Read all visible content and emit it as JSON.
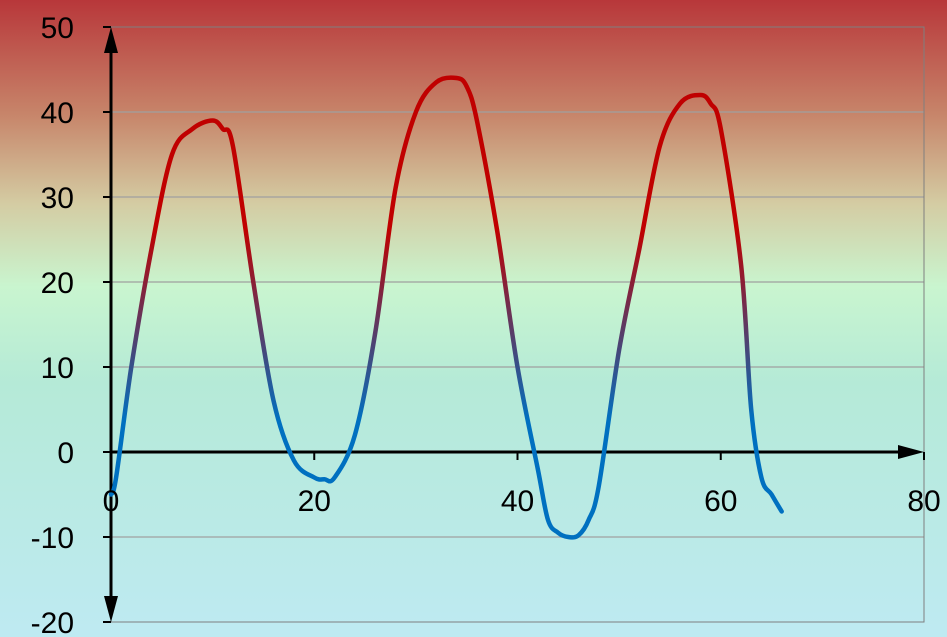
{
  "chart_data": {
    "type": "line",
    "title": "",
    "xlabel": "",
    "ylabel": "",
    "xlim": [
      0,
      80
    ],
    "ylim": [
      -20,
      50
    ],
    "x_ticks": [
      0,
      20,
      40,
      60,
      80
    ],
    "y_ticks": [
      -20,
      -10,
      0,
      10,
      20,
      30,
      40,
      50
    ],
    "x_tick_labels": [
      "0",
      "20",
      "40",
      "60",
      "80"
    ],
    "y_tick_labels": [
      "-20",
      "-10",
      "0",
      "10",
      "20",
      "30",
      "40",
      "50"
    ],
    "grid": "horizontal",
    "legend": "none",
    "series": [
      {
        "x": [
          0,
          0.5,
          2,
          4,
          6,
          8,
          10,
          11,
          12,
          14,
          16,
          18,
          20,
          21,
          22,
          24,
          26,
          28,
          30,
          32,
          34,
          35,
          36,
          38,
          40,
          42,
          43,
          44,
          45,
          46,
          47,
          48,
          50,
          52,
          54,
          56,
          58,
          59,
          60,
          62,
          63,
          64,
          65,
          66
        ],
        "values": [
          -5,
          -3,
          10,
          24,
          35,
          38,
          39,
          38,
          36,
          20,
          6,
          -1,
          -3,
          -3.2,
          -3,
          2,
          14,
          31,
          40,
          43.5,
          44,
          43,
          39,
          26,
          10,
          -2,
          -8,
          -9.5,
          -10,
          -9.8,
          -8,
          -4,
          12,
          24,
          36,
          41,
          42,
          41,
          38,
          22,
          5,
          -3,
          -5,
          -7
        ]
      }
    ],
    "colors": {
      "line_high": "#C00000",
      "line_low": "#0070C0",
      "background_top": "#B8373A",
      "background_mid": "#C9F5CF",
      "background_bottom": "#BEEAF2",
      "gridline": "#A0A0A0",
      "axis": "#000000"
    }
  }
}
